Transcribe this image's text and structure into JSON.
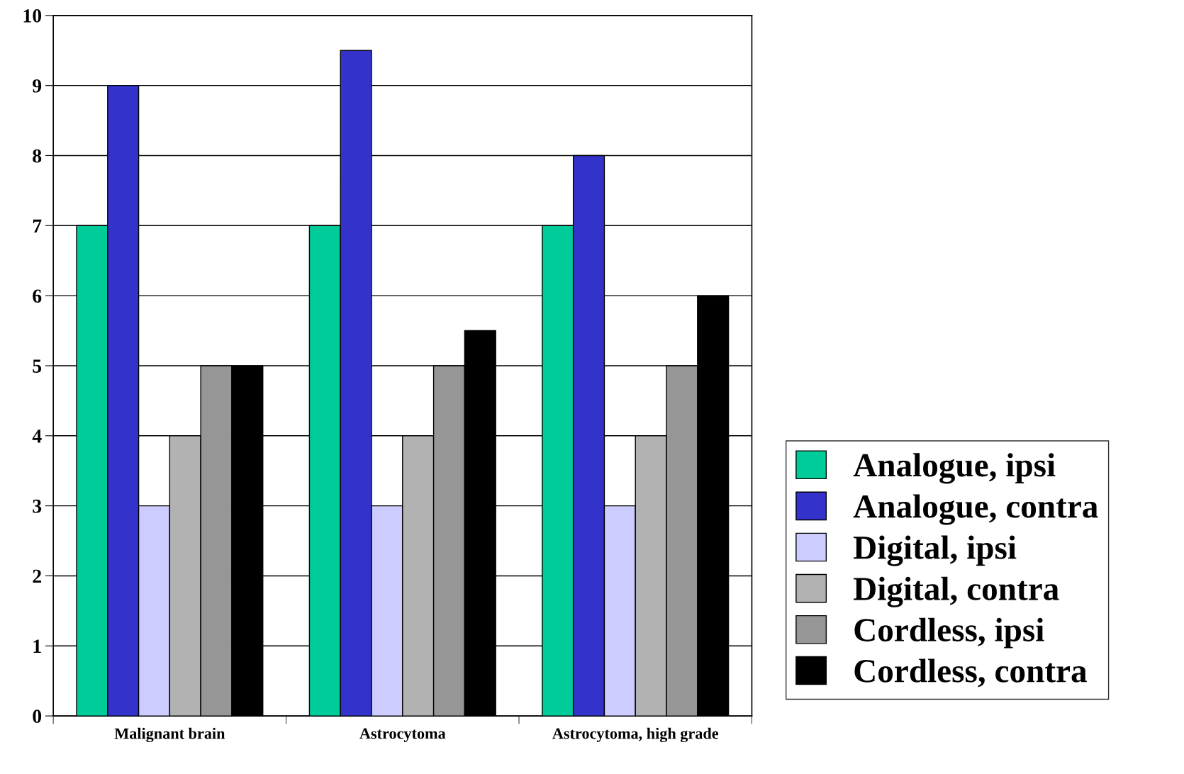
{
  "chart_data": {
    "type": "bar",
    "categories": [
      "Malignant brain",
      "Astrocytoma",
      "Astrocytoma, high grade"
    ],
    "series": [
      {
        "name": "Analogue, ipsi",
        "color": "#00cc99",
        "values": [
          7,
          7,
          7
        ]
      },
      {
        "name": "Analogue, contra",
        "color": "#3333cc",
        "values": [
          9,
          9.5,
          8
        ]
      },
      {
        "name": "Digital, ipsi",
        "color": "#ccccff",
        "values": [
          3,
          3,
          3
        ]
      },
      {
        "name": "Digital, contra",
        "color": "#b2b2b2",
        "values": [
          4,
          4,
          4
        ]
      },
      {
        "name": "Cordless, ipsi",
        "color": "#969696",
        "values": [
          5,
          5,
          5
        ]
      },
      {
        "name": "Cordless, contra",
        "color": "#000000",
        "values": [
          5,
          5.5,
          6
        ]
      }
    ],
    "ylim": [
      0,
      10
    ],
    "yticks": [
      0,
      1,
      2,
      3,
      4,
      5,
      6,
      7,
      8,
      9,
      10
    ],
    "grid": "y",
    "legend": "right"
  }
}
